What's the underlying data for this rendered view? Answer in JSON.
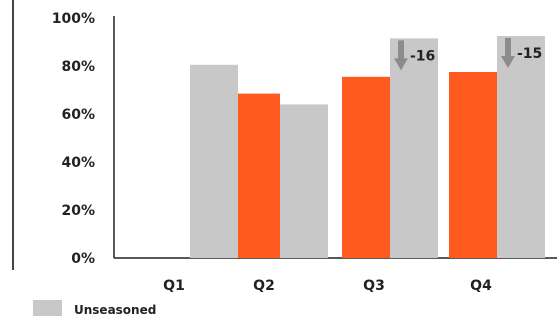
{
  "chart_data": {
    "type": "bar",
    "categories": [
      "Q1",
      "Q2",
      "Q3",
      "Q4"
    ],
    "series": [
      {
        "key": "orange",
        "color": "#ff5a1f",
        "values": [
          null,
          68.5,
          75.5,
          77.5
        ]
      },
      {
        "key": "unseasoned",
        "name": "Unseasoned",
        "color": "#c8c8c8",
        "values": [
          80.5,
          64,
          91.5,
          92.5
        ]
      }
    ],
    "ylim": [
      0,
      100
    ],
    "yticks": [
      "0%",
      "20%",
      "40%",
      "60%",
      "80%",
      "100%"
    ],
    "ytick_values": [
      0,
      20,
      40,
      60,
      80,
      100
    ],
    "annotations": [
      {
        "category": "Q3",
        "text": "-16",
        "icon": "down-arrow-icon",
        "arrow_color": "#8c8c8c"
      },
      {
        "category": "Q4",
        "text": "-15",
        "icon": "down-arrow-icon",
        "arrow_color": "#8c8c8c"
      }
    ],
    "legend": {
      "position": "bottom-left",
      "entries": [
        {
          "label": "Unseasoned",
          "color": "#c8c8c8"
        }
      ]
    },
    "grid": false
  }
}
